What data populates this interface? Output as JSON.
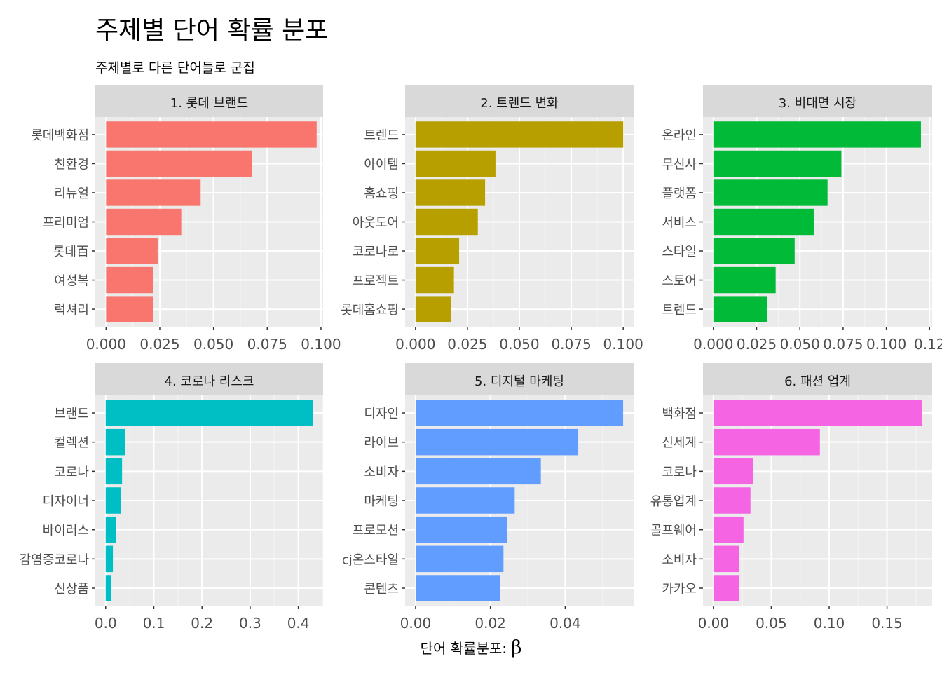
{
  "chart_data": {
    "type": "bar",
    "orientation": "horizontal",
    "title": "주제별 단어 확률 분포",
    "subtitle": "주제별로 다른 단어들로 군집",
    "xlabel": "단어 확률분포: ",
    "xlabel_symbol": "β",
    "ylabel": "",
    "grid": true,
    "legend": "none",
    "facets": [
      {
        "label": "1. 롯데 브랜드",
        "color": "#F8766D",
        "terms": [
          "롯데백화점",
          "친환경",
          "리뉴얼",
          "프리미엄",
          "롯데百",
          "여성복",
          "럭셔리"
        ],
        "values": [
          0.098,
          0.068,
          0.044,
          0.035,
          0.024,
          0.022,
          0.022
        ],
        "xlim": [
          -0.005,
          0.101
        ],
        "ticks": [
          0,
          0.025,
          0.05,
          0.075,
          0.1
        ],
        "tick_labels": [
          "0.000",
          "0.025",
          "0.050",
          "0.075",
          "0.100"
        ]
      },
      {
        "label": "2. 트렌드 변화",
        "color": "#B79F00",
        "terms": [
          "트렌드",
          "아이템",
          "홈쇼핑",
          "아웃도어",
          "코로나로",
          "프로젝트",
          "롯데홈쇼핑"
        ],
        "values": [
          0.1,
          0.0385,
          0.0335,
          0.03,
          0.021,
          0.0185,
          0.017
        ],
        "xlim": [
          -0.005,
          0.105
        ],
        "ticks": [
          0,
          0.025,
          0.05,
          0.075,
          0.1
        ],
        "tick_labels": [
          "0.000",
          "0.025",
          "0.050",
          "0.075",
          "0.100"
        ]
      },
      {
        "label": "3. 비대면 시장",
        "color": "#00BA38",
        "terms": [
          "온라인",
          "무신사",
          "플랫폼",
          "서비스",
          "스타일",
          "스토어",
          "트렌드"
        ],
        "values": [
          0.12,
          0.074,
          0.066,
          0.058,
          0.047,
          0.036,
          0.031
        ],
        "xlim": [
          -0.006,
          0.1265
        ],
        "ticks": [
          0,
          0.025,
          0.05,
          0.075,
          0.1,
          0.125
        ],
        "tick_labels": [
          "0.000",
          "0.025",
          "0.050",
          "0.075",
          "0.100",
          "0.12"
        ]
      },
      {
        "label": "4. 코로나 리스크",
        "color": "#00BFC4",
        "terms": [
          "브랜드",
          "컬렉션",
          "코로나",
          "디자이너",
          "바이러스",
          "감염증코로나",
          "신상품"
        ],
        "values": [
          0.43,
          0.04,
          0.034,
          0.032,
          0.021,
          0.015,
          0.012
        ],
        "xlim": [
          -0.0215,
          0.4515
        ],
        "ticks": [
          0,
          0.1,
          0.2,
          0.3,
          0.4
        ],
        "tick_labels": [
          "0.0",
          "0.1",
          "0.2",
          "0.3",
          "0.4"
        ]
      },
      {
        "label": "5. 디지털 마케팅",
        "color": "#619CFF",
        "terms": [
          "디자인",
          "라이브",
          "소비자",
          "마케팅",
          "프로모션",
          "cj온스타일",
          "콘텐츠"
        ],
        "values": [
          0.0555,
          0.0435,
          0.0335,
          0.0265,
          0.0245,
          0.0235,
          0.0225
        ],
        "xlim": [
          -0.0028,
          0.0583
        ],
        "ticks": [
          0,
          0.02,
          0.04
        ],
        "tick_labels": [
          "0.00",
          "0.02",
          "0.04"
        ]
      },
      {
        "label": "6. 패션 업계",
        "color": "#F564E3",
        "terms": [
          "백화점",
          "신세계",
          "코로나",
          "유통업계",
          "골프웨어",
          "소비자",
          "카카오"
        ],
        "values": [
          0.18,
          0.092,
          0.034,
          0.032,
          0.026,
          0.022,
          0.022
        ],
        "xlim": [
          -0.009,
          0.189
        ],
        "ticks": [
          0,
          0.05,
          0.1,
          0.15
        ],
        "tick_labels": [
          "0.00",
          "0.05",
          "0.10",
          "0.15"
        ]
      }
    ]
  }
}
